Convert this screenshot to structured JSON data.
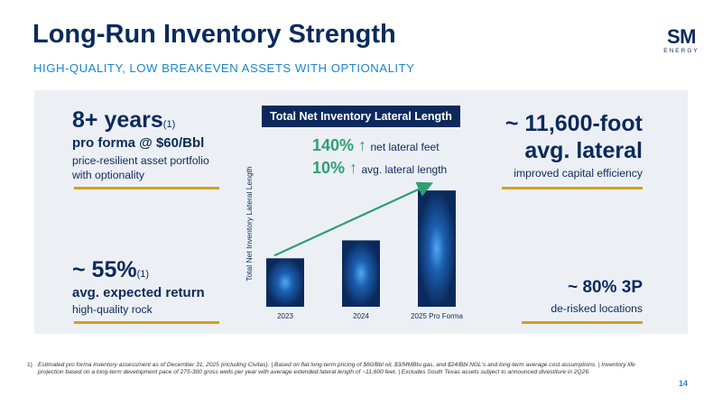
{
  "header": {
    "title": "Long-Run Inventory Strength",
    "subtitle": "HIGH-QUALITY, LOW BREAKEVEN ASSETS WITH OPTIONALITY"
  },
  "logo": {
    "mark": "SM",
    "sub": "ENERGY"
  },
  "left_top": {
    "big": "8+ years",
    "sup": "(1)",
    "bold": "pro forma @ $60/Bbl",
    "line1": "price-resilient asset portfolio",
    "line2": "with optionality"
  },
  "left_bottom": {
    "big": "~ 55%",
    "sup": "(1)",
    "bold": "avg. expected return",
    "line1": "high-quality rock"
  },
  "right_top": {
    "big1": "~ 11,600-foot",
    "big2": "avg. lateral",
    "line1": "improved capital efficiency"
  },
  "right_bottom": {
    "big": "~ 80% 3P",
    "line1": "de-risked locations"
  },
  "chart_title": "Total Net Inventory Lateral Length",
  "highlights": [
    {
      "value": "140% ↑",
      "label": "net lateral feet"
    },
    {
      "value": "10% ↑",
      "label": "avg. lateral length"
    }
  ],
  "chart_data": {
    "type": "bar",
    "title": "Total Net Inventory Lateral Length",
    "ylabel": "Total Net Inventory Lateral Length",
    "xlabel": "",
    "categories": [
      "2023",
      "2024",
      "2025 Pro Forma"
    ],
    "values": [
      1.0,
      1.37,
      2.4
    ],
    "ylim": [
      0,
      2.7
    ],
    "y_ticks_shown": false,
    "grid": false,
    "colors": {
      "bar": "#0b2a5b",
      "glow": "#2f8be0",
      "arrow": "#2f9e73"
    }
  },
  "footnote": {
    "num": "1)",
    "text": "Estimated pro forma inventory assessment as of December 31, 2025 (including Civitas). | Based on flat long-term pricing of $60/Bbl oil, $3/MMBtu gas, and $24/Bbl NGL's and long-term average cost assumptions. | Inventory life projection based on a long-term development pace of 275-300 gross wells per year with average extended lateral length of ~11,600 feet. | Excludes South Texas assets subject to announced divestiture in 2Q26."
  },
  "page_number": "14"
}
